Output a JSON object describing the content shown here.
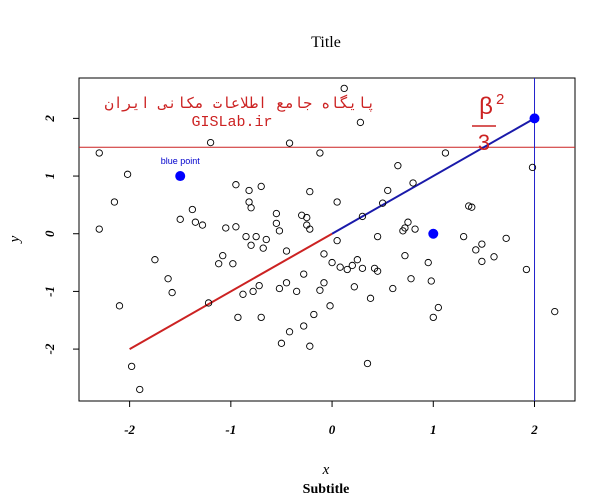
{
  "chart_data": {
    "type": "scatter",
    "title": "Title",
    "subtitle": "Subtitle",
    "xlabel": "x",
    "ylabel": "y",
    "xlim": [
      -2.5,
      2.4
    ],
    "ylim": [
      -2.9,
      2.7
    ],
    "xticks": [
      -2,
      -1,
      0,
      1,
      2
    ],
    "yticks": [
      -2,
      -1,
      0,
      1,
      2
    ],
    "xtick_labels": [
      "-2",
      "-1",
      "0",
      "1",
      "2"
    ],
    "ytick_labels": [
      "-2",
      "-1",
      "0",
      "1",
      "2"
    ],
    "grid": false,
    "points": [
      {
        "x": -2.3,
        "y": 1.4
      },
      {
        "x": -2.3,
        "y": 0.08
      },
      {
        "x": -2.15,
        "y": 0.55
      },
      {
        "x": -2.1,
        "y": -1.25
      },
      {
        "x": -2.02,
        "y": 1.03
      },
      {
        "x": -1.98,
        "y": -2.3
      },
      {
        "x": -1.9,
        "y": -2.7
      },
      {
        "x": -1.75,
        "y": -0.45
      },
      {
        "x": -1.62,
        "y": -0.78
      },
      {
        "x": -1.58,
        "y": -1.02
      },
      {
        "x": -1.5,
        "y": 0.25
      },
      {
        "x": -1.38,
        "y": 0.42
      },
      {
        "x": -1.35,
        "y": 0.2
      },
      {
        "x": -1.28,
        "y": 0.15
      },
      {
        "x": -1.22,
        "y": -1.2
      },
      {
        "x": -1.2,
        "y": 1.58
      },
      {
        "x": -1.12,
        "y": -0.52
      },
      {
        "x": -1.08,
        "y": -0.38
      },
      {
        "x": -1.05,
        "y": 0.1
      },
      {
        "x": -0.98,
        "y": -0.52
      },
      {
        "x": -0.95,
        "y": 0.85
      },
      {
        "x": -0.95,
        "y": 0.12
      },
      {
        "x": -0.93,
        "y": -1.45
      },
      {
        "x": -0.88,
        "y": -1.05
      },
      {
        "x": -0.85,
        "y": -0.05
      },
      {
        "x": -0.82,
        "y": 0.75
      },
      {
        "x": -0.82,
        "y": 0.55
      },
      {
        "x": -0.8,
        "y": -0.2
      },
      {
        "x": -0.8,
        "y": 0.45
      },
      {
        "x": -0.78,
        "y": -1.0
      },
      {
        "x": -0.75,
        "y": -0.05
      },
      {
        "x": -0.72,
        "y": -0.9
      },
      {
        "x": -0.7,
        "y": 0.82
      },
      {
        "x": -0.7,
        "y": -1.45
      },
      {
        "x": -0.68,
        "y": -0.25
      },
      {
        "x": -0.65,
        "y": -0.1
      },
      {
        "x": -0.55,
        "y": 0.35
      },
      {
        "x": -0.55,
        "y": 0.18
      },
      {
        "x": -0.52,
        "y": 0.05
      },
      {
        "x": -0.52,
        "y": -0.95
      },
      {
        "x": -0.5,
        "y": -1.9
      },
      {
        "x": -0.45,
        "y": -0.85
      },
      {
        "x": -0.45,
        "y": -0.3
      },
      {
        "x": -0.42,
        "y": 1.57
      },
      {
        "x": -0.42,
        "y": -1.7
      },
      {
        "x": -0.35,
        "y": -1.0
      },
      {
        "x": -0.3,
        "y": 0.32
      },
      {
        "x": -0.28,
        "y": -1.6
      },
      {
        "x": -0.28,
        "y": -0.7
      },
      {
        "x": -0.25,
        "y": 0.28
      },
      {
        "x": -0.25,
        "y": 0.15
      },
      {
        "x": -0.22,
        "y": 0.08
      },
      {
        "x": -0.22,
        "y": 0.73
      },
      {
        "x": -0.22,
        "y": -1.95
      },
      {
        "x": -0.18,
        "y": -1.4
      },
      {
        "x": -0.12,
        "y": 1.4
      },
      {
        "x": -0.12,
        "y": -0.98
      },
      {
        "x": -0.08,
        "y": -0.85
      },
      {
        "x": -0.08,
        "y": -0.35
      },
      {
        "x": -0.02,
        "y": -1.25
      },
      {
        "x": 0.0,
        "y": -0.5
      },
      {
        "x": 0.05,
        "y": -0.12
      },
      {
        "x": 0.05,
        "y": 0.55
      },
      {
        "x": 0.08,
        "y": -0.58
      },
      {
        "x": 0.12,
        "y": 2.52
      },
      {
        "x": 0.15,
        "y": -0.62
      },
      {
        "x": 0.2,
        "y": -0.55
      },
      {
        "x": 0.22,
        "y": -0.92
      },
      {
        "x": 0.25,
        "y": -0.45
      },
      {
        "x": 0.28,
        "y": 1.93
      },
      {
        "x": 0.3,
        "y": 0.3
      },
      {
        "x": 0.3,
        "y": -0.6
      },
      {
        "x": 0.35,
        "y": -2.25
      },
      {
        "x": 0.38,
        "y": -1.12
      },
      {
        "x": 0.42,
        "y": -0.6
      },
      {
        "x": 0.45,
        "y": -0.65
      },
      {
        "x": 0.45,
        "y": -0.05
      },
      {
        "x": 0.5,
        "y": 0.53
      },
      {
        "x": 0.55,
        "y": 0.75
      },
      {
        "x": 0.6,
        "y": -0.95
      },
      {
        "x": 0.65,
        "y": 1.18
      },
      {
        "x": 0.7,
        "y": 0.05
      },
      {
        "x": 0.72,
        "y": -0.38
      },
      {
        "x": 0.72,
        "y": 0.1
      },
      {
        "x": 0.75,
        "y": 0.2
      },
      {
        "x": 0.78,
        "y": -0.78
      },
      {
        "x": 0.8,
        "y": 0.88
      },
      {
        "x": 0.82,
        "y": 0.08
      },
      {
        "x": 0.95,
        "y": -0.5
      },
      {
        "x": 0.98,
        "y": -0.82
      },
      {
        "x": 1.0,
        "y": -1.45
      },
      {
        "x": 1.05,
        "y": -1.28
      },
      {
        "x": 1.12,
        "y": 1.4
      },
      {
        "x": 1.3,
        "y": -0.05
      },
      {
        "x": 1.35,
        "y": 0.48
      },
      {
        "x": 1.38,
        "y": 0.46
      },
      {
        "x": 1.42,
        "y": -0.28
      },
      {
        "x": 1.48,
        "y": -0.18
      },
      {
        "x": 1.48,
        "y": -0.48
      },
      {
        "x": 1.6,
        "y": -0.4
      },
      {
        "x": 1.72,
        "y": -0.08
      },
      {
        "x": 1.92,
        "y": -0.62
      },
      {
        "x": 1.98,
        "y": 1.15
      },
      {
        "x": 2.2,
        "y": -1.35
      }
    ],
    "highlight_points": [
      {
        "x": -1.5,
        "y": 1.0,
        "label": "blue point",
        "color": "#0000ff"
      },
      {
        "x": 1.0,
        "y": 0.0,
        "color": "#0000ff"
      },
      {
        "x": 2.0,
        "y": 2.0,
        "color": "#0000ff"
      }
    ],
    "segments": [
      {
        "x1": -2,
        "y1": -2,
        "x2": 0,
        "y2": 0,
        "color": "#cc2222"
      },
      {
        "x1": 0,
        "y1": 0,
        "x2": 2,
        "y2": 2,
        "color": "#1a1aaa"
      }
    ],
    "hline": {
      "y": 1.5,
      "color": "#cc2222"
    },
    "vline": {
      "x": 2.0,
      "color": "#2222cc"
    },
    "annotations": {
      "persian_text": "پایگاه جامع اطلاعات مکانی ایران",
      "site_text": "GISLab.ir",
      "formula_base": "β",
      "formula_exp": "2",
      "formula_denominator": "3",
      "text_color": "#cc2222"
    }
  }
}
